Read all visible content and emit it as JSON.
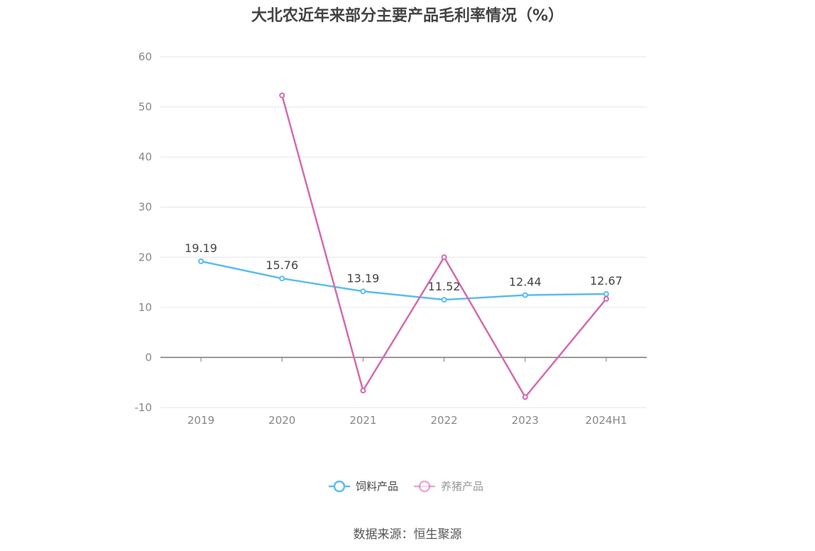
{
  "title": "大北农近年来部分主要产品毛利率情况（%）",
  "source": "数据来源：恒生聚源",
  "chart_data": {
    "type": "line",
    "title": "大北农近年来部分主要产品毛利率情况（%）",
    "xlabel": "",
    "ylabel": "",
    "categories": [
      "2019",
      "2020",
      "2021",
      "2022",
      "2023",
      "2024H1"
    ],
    "ylim": [
      -10,
      60
    ],
    "yticks": [
      -10,
      0,
      10,
      20,
      30,
      40,
      50,
      60
    ],
    "grid": true,
    "legend_position": "bottom",
    "series": [
      {
        "name": "饲料产品",
        "color": "#5bbcf0",
        "values": [
          19.19,
          15.76,
          13.19,
          11.52,
          12.44,
          12.67
        ],
        "labels": [
          "19.19",
          "15.76",
          "13.19",
          "11.52",
          "12.44",
          "12.67"
        ]
      },
      {
        "name": "养猪产品",
        "color": "#d46ab0",
        "values": [
          null,
          52.3,
          -6.6,
          20.0,
          -7.9,
          11.7
        ]
      }
    ]
  }
}
